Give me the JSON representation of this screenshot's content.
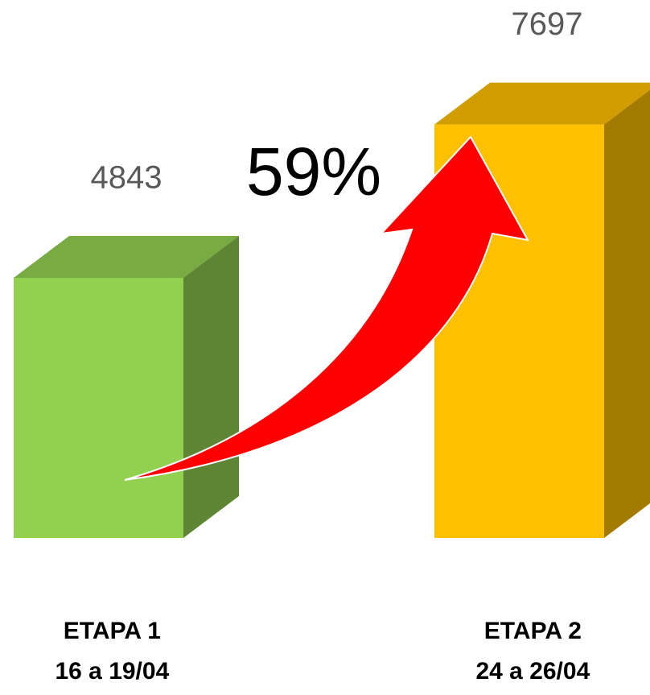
{
  "chart_data": {
    "type": "bar3d",
    "categories": [
      [
        "ETAPA 1",
        "16 a 19/04"
      ],
      [
        "ETAPA 2",
        "24 a 26/04"
      ]
    ],
    "values": [
      4843,
      7697
    ],
    "colors": [
      "#92d050",
      "#ffc000"
    ],
    "ylim": [
      0,
      10000
    ],
    "annotation": "59%"
  }
}
